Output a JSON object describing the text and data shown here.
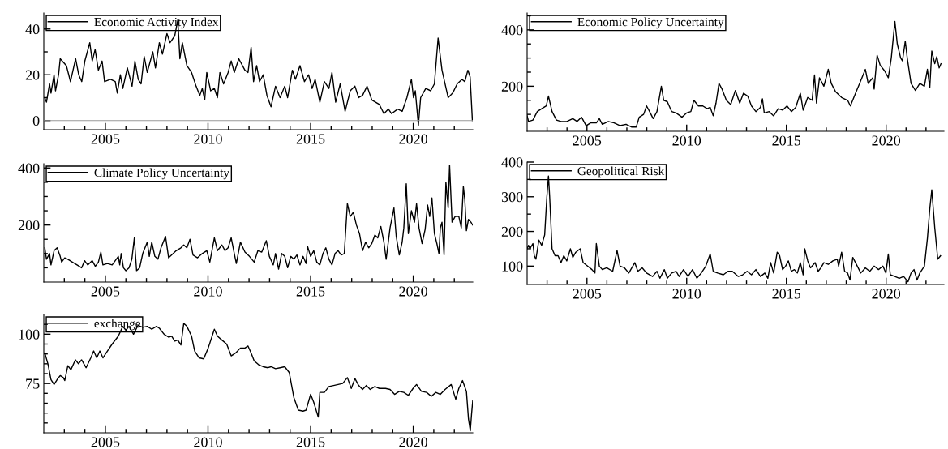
{
  "chart_data": [
    {
      "type": "line",
      "legend": "top left",
      "xlim": [
        2002.0,
        2022.9
      ],
      "ylim": [
        -4,
        47
      ],
      "xticks": [
        {
          "value": 2003,
          "label": null
        },
        {
          "value": 2004,
          "label": null
        },
        2005,
        {
          "value": 2006,
          "label": null
        },
        {
          "value": 2007,
          "label": null
        },
        {
          "value": 2008,
          "label": null
        },
        {
          "value": 2009,
          "label": null
        },
        2010,
        {
          "value": 2011,
          "label": null
        },
        {
          "value": 2012,
          "label": null
        },
        {
          "value": 2013,
          "label": null
        },
        {
          "value": 2014,
          "label": null
        },
        2015,
        {
          "value": 2016,
          "label": null
        },
        {
          "value": 2017,
          "label": null
        },
        {
          "value": 2018,
          "label": null
        },
        {
          "value": 2019,
          "label": null
        },
        2020,
        {
          "value": 2021,
          "label": null
        },
        {
          "value": 2022,
          "label": null
        }
      ],
      "yticks": [
        0,
        {
          "value": 10,
          "label": null
        },
        20,
        {
          "value": 30,
          "label": null
        },
        40
      ],
      "ref_lines": [
        {
          "axis": "y",
          "value": 0,
          "label": null,
          "color": "#999999"
        }
      ],
      "series": [
        {
          "name": "Economic Activity Index",
          "color": "#000000",
          "x": [
            2002.05,
            2002.13,
            2002.28,
            2002.35,
            2002.5,
            2002.57,
            2002.72,
            2002.8,
            2003.1,
            2003.3,
            2003.55,
            2003.7,
            2003.85,
            2004.0,
            2004.24,
            2004.36,
            2004.5,
            2004.66,
            2004.84,
            2004.96,
            2005.25,
            2005.48,
            2005.58,
            2005.73,
            2005.85,
            2006.07,
            2006.3,
            2006.44,
            2006.6,
            2006.74,
            2006.89,
            2007.04,
            2007.31,
            2007.44,
            2007.63,
            2007.78,
            2008.0,
            2008.15,
            2008.38,
            2008.53,
            2008.63,
            2008.75,
            2008.97,
            2009.2,
            2009.42,
            2009.6,
            2009.72,
            2009.84,
            2009.94,
            2010.13,
            2010.31,
            2010.46,
            2010.58,
            2010.76,
            2010.98,
            2011.13,
            2011.28,
            2011.5,
            2011.8,
            2011.95,
            2012.1,
            2012.22,
            2012.37,
            2012.51,
            2012.69,
            2012.87,
            2013.07,
            2013.29,
            2013.51,
            2013.74,
            2013.88,
            2014.11,
            2014.26,
            2014.48,
            2014.7,
            2014.9,
            2015.07,
            2015.22,
            2015.45,
            2015.67,
            2015.89,
            2016.04,
            2016.22,
            2016.44,
            2016.68,
            2016.93,
            2017.16,
            2017.34,
            2017.53,
            2017.75,
            2017.98,
            2018.35,
            2018.57,
            2018.79,
            2018.94,
            2019.24,
            2019.46,
            2019.69,
            2019.91,
            2020.01,
            2020.1,
            2020.25,
            2020.36,
            2020.61,
            2020.85,
            2021.03,
            2021.21,
            2021.4,
            2021.7,
            2021.92,
            2022.14,
            2022.37,
            2022.51,
            2022.66,
            2022.77,
            2022.88
          ],
          "values": [
            10,
            8,
            16,
            12,
            20,
            13,
            20,
            27,
            24,
            17,
            27,
            20,
            17,
            26,
            34,
            26,
            31,
            22,
            26,
            17,
            18,
            17,
            12,
            20,
            14,
            23,
            15,
            26,
            18,
            16,
            28,
            21,
            30,
            23,
            34,
            29,
            38,
            34,
            37,
            44,
            27,
            34,
            24,
            21,
            15,
            11,
            14,
            9,
            21,
            13,
            14,
            10,
            21,
            16,
            21,
            26,
            21,
            27,
            22,
            21,
            32,
            17,
            24,
            17,
            20,
            11,
            6,
            15,
            10,
            15,
            10,
            22,
            18,
            24,
            17,
            20,
            14,
            18,
            8,
            17,
            14,
            21,
            8,
            16,
            4,
            13,
            15,
            10,
            11,
            15,
            9,
            7,
            3,
            5,
            3,
            5,
            4,
            10,
            18,
            10,
            13,
            -2,
            10,
            14,
            13,
            16,
            36,
            22,
            10,
            12,
            16,
            18,
            17,
            22,
            19,
            0
          ]
        }
      ]
    },
    {
      "type": "line",
      "legend": "top left",
      "xlim": [
        2002.0,
        2022.9
      ],
      "ylim": [
        40,
        460
      ],
      "xticks": [
        {
          "value": 2003,
          "label": null
        },
        {
          "value": 2004,
          "label": null
        },
        2005,
        {
          "value": 2006,
          "label": null
        },
        {
          "value": 2007,
          "label": null
        },
        {
          "value": 2008,
          "label": null
        },
        {
          "value": 2009,
          "label": null
        },
        2010,
        {
          "value": 2011,
          "label": null
        },
        {
          "value": 2012,
          "label": null
        },
        {
          "value": 2013,
          "label": null
        },
        {
          "value": 2014,
          "label": null
        },
        2015,
        {
          "value": 2016,
          "label": null
        },
        {
          "value": 2017,
          "label": null
        },
        {
          "value": 2018,
          "label": null
        },
        {
          "value": 2019,
          "label": null
        },
        2020,
        {
          "value": 2021,
          "label": null
        },
        {
          "value": 2022,
          "label": null
        }
      ],
      "yticks": [
        {
          "value": 100,
          "label": null
        },
        {
          "value": 150,
          "label": null
        },
        200,
        {
          "value": 250,
          "label": null
        },
        {
          "value": 300,
          "label": null
        },
        {
          "value": 350,
          "label": null
        },
        400,
        {
          "value": 450,
          "label": null
        }
      ],
      "series": [
        {
          "name": "Economic Policy Uncertainty",
          "color": "#000000",
          "x": [
            2002.0,
            2002.07,
            2002.29,
            2002.51,
            2002.73,
            2002.96,
            2003.07,
            2003.25,
            2003.47,
            2003.7,
            2003.99,
            2004.29,
            2004.51,
            2004.73,
            2004.96,
            2005.18,
            2005.47,
            2005.62,
            2005.77,
            2006.07,
            2006.36,
            2006.66,
            2006.96,
            2007.25,
            2007.47,
            2007.62,
            2007.84,
            2007.99,
            2008.14,
            2008.32,
            2008.51,
            2008.73,
            2008.85,
            2009.03,
            2009.25,
            2009.47,
            2009.77,
            2009.99,
            2010.21,
            2010.36,
            2010.59,
            2010.81,
            2011.03,
            2011.18,
            2011.33,
            2011.47,
            2011.62,
            2011.77,
            2011.99,
            2012.21,
            2012.44,
            2012.66,
            2012.85,
            2013.06,
            2013.25,
            2013.47,
            2013.7,
            2013.8,
            2013.89,
            2014.14,
            2014.36,
            2014.59,
            2014.81,
            2015.03,
            2015.25,
            2015.47,
            2015.7,
            2015.84,
            2016.07,
            2016.29,
            2016.41,
            2016.51,
            2016.66,
            2016.88,
            2017.1,
            2017.25,
            2017.47,
            2017.77,
            2018.07,
            2018.21,
            2018.44,
            2018.73,
            2018.96,
            2019.1,
            2019.33,
            2019.4,
            2019.55,
            2019.7,
            2019.92,
            2020.11,
            2020.26,
            2020.44,
            2020.56,
            2020.73,
            2020.82,
            2020.96,
            2021.06,
            2021.25,
            2021.47,
            2021.69,
            2021.92,
            2022.07,
            2022.19,
            2022.29,
            2022.44,
            2022.54,
            2022.66,
            2022.75
          ],
          "values": [
            95,
            75,
            80,
            110,
            120,
            130,
            165,
            110,
            80,
            75,
            75,
            85,
            75,
            90,
            60,
            70,
            70,
            85,
            65,
            75,
            70,
            60,
            65,
            55,
            55,
            90,
            100,
            130,
            110,
            85,
            110,
            200,
            150,
            145,
            110,
            105,
            90,
            105,
            110,
            150,
            130,
            130,
            120,
            125,
            95,
            140,
            210,
            190,
            150,
            135,
            185,
            140,
            175,
            165,
            130,
            110,
            125,
            155,
            105,
            110,
            95,
            120,
            115,
            130,
            110,
            125,
            175,
            115,
            160,
            150,
            240,
            140,
            230,
            200,
            260,
            210,
            180,
            160,
            150,
            130,
            170,
            220,
            260,
            210,
            230,
            190,
            310,
            275,
            255,
            230,
            300,
            430,
            350,
            300,
            290,
            360,
            300,
            210,
            185,
            210,
            200,
            260,
            195,
            325,
            280,
            305,
            265,
            280
          ]
        }
      ]
    },
    {
      "type": "line",
      "legend": "top left",
      "xlim": [
        2002.0,
        2022.9
      ],
      "ylim": [
        0,
        415
      ],
      "xticks": [
        {
          "value": 2003,
          "label": null
        },
        {
          "value": 2004,
          "label": null
        },
        2005,
        {
          "value": 2006,
          "label": null
        },
        {
          "value": 2007,
          "label": null
        },
        {
          "value": 2008,
          "label": null
        },
        {
          "value": 2009,
          "label": null
        },
        2010,
        {
          "value": 2011,
          "label": null
        },
        {
          "value": 2012,
          "label": null
        },
        {
          "value": 2013,
          "label": null
        },
        {
          "value": 2014,
          "label": null
        },
        2015,
        {
          "value": 2016,
          "label": null
        },
        {
          "value": 2017,
          "label": null
        },
        {
          "value": 2018,
          "label": null
        },
        {
          "value": 2019,
          "label": null
        },
        2020,
        {
          "value": 2021,
          "label": null
        },
        {
          "value": 2022,
          "label": null
        }
      ],
      "yticks": [
        {
          "value": 50,
          "label": null
        },
        {
          "value": 100,
          "label": null
        },
        {
          "value": 150,
          "label": null
        },
        200,
        {
          "value": 250,
          "label": null
        },
        {
          "value": 300,
          "label": null
        },
        {
          "value": 350,
          "label": null
        },
        400
      ],
      "series": [
        {
          "name": "Climate Policy Uncertainty",
          "color": "#000000",
          "x": [
            2002.05,
            2002.13,
            2002.28,
            2002.35,
            2002.5,
            2002.65,
            2002.8,
            2002.87,
            2003.02,
            2003.17,
            2003.39,
            2003.62,
            2003.84,
            2003.99,
            2004.14,
            2004.36,
            2004.51,
            2004.66,
            2004.78,
            2004.88,
            2005.1,
            2005.33,
            2005.48,
            2005.63,
            2005.7,
            2005.77,
            2005.88,
            2006.0,
            2006.15,
            2006.29,
            2006.41,
            2006.52,
            2006.67,
            2006.82,
            2007.04,
            2007.14,
            2007.26,
            2007.41,
            2007.56,
            2007.71,
            2007.93,
            2008.08,
            2008.23,
            2008.45,
            2008.68,
            2008.82,
            2008.97,
            2009.12,
            2009.27,
            2009.49,
            2009.72,
            2009.94,
            2010.09,
            2010.31,
            2010.46,
            2010.68,
            2010.83,
            2010.98,
            2011.13,
            2011.28,
            2011.38,
            2011.58,
            2011.8,
            2012.02,
            2012.25,
            2012.43,
            2012.62,
            2012.84,
            2012.99,
            2013.18,
            2013.29,
            2013.44,
            2013.59,
            2013.74,
            2013.88,
            2014.03,
            2014.18,
            2014.33,
            2014.48,
            2014.63,
            2014.78,
            2014.85,
            2015.0,
            2015.15,
            2015.3,
            2015.45,
            2015.6,
            2015.74,
            2015.89,
            2016.04,
            2016.19,
            2016.34,
            2016.49,
            2016.64,
            2016.79,
            2016.93,
            2017.08,
            2017.23,
            2017.38,
            2017.53,
            2017.68,
            2017.83,
            2017.98,
            2018.13,
            2018.27,
            2018.42,
            2018.57,
            2018.68,
            2018.87,
            2019.06,
            2019.17,
            2019.32,
            2019.46,
            2019.54,
            2019.66,
            2019.76,
            2019.91,
            2020.06,
            2020.16,
            2020.28,
            2020.43,
            2020.58,
            2020.7,
            2020.8,
            2020.91,
            2021.03,
            2021.15,
            2021.25,
            2021.32,
            2021.4,
            2021.5,
            2021.59,
            2021.7,
            2021.77,
            2021.89,
            2022.04,
            2022.22,
            2022.34,
            2022.44,
            2022.51,
            2022.59,
            2022.69,
            2022.81,
            2022.89
          ],
          "values": [
            120,
            80,
            100,
            60,
            110,
            120,
            90,
            70,
            85,
            80,
            70,
            60,
            50,
            75,
            60,
            75,
            55,
            70,
            105,
            60,
            65,
            60,
            75,
            90,
            60,
            100,
            50,
            40,
            50,
            80,
            155,
            40,
            50,
            100,
            140,
            90,
            140,
            90,
            80,
            120,
            160,
            85,
            95,
            110,
            120,
            130,
            120,
            150,
            95,
            85,
            100,
            110,
            70,
            155,
            110,
            130,
            110,
            120,
            155,
            100,
            65,
            140,
            105,
            90,
            70,
            110,
            105,
            145,
            90,
            60,
            100,
            45,
            100,
            90,
            50,
            90,
            80,
            95,
            60,
            90,
            65,
            125,
            90,
            110,
            70,
            60,
            100,
            120,
            80,
            60,
            100,
            110,
            95,
            100,
            275,
            230,
            245,
            200,
            170,
            110,
            140,
            120,
            135,
            165,
            155,
            195,
            140,
            80,
            190,
            260,
            160,
            95,
            140,
            190,
            345,
            170,
            250,
            210,
            275,
            190,
            135,
            185,
            270,
            230,
            295,
            170,
            135,
            100,
            190,
            210,
            95,
            350,
            260,
            410,
            210,
            230,
            230,
            190,
            335,
            290,
            180,
            220,
            210,
            200
          ]
        }
      ]
    },
    {
      "type": "line",
      "legend": "top left",
      "xlim": [
        2002.0,
        2022.9
      ],
      "ylim": [
        47,
        400
      ],
      "xticks": [
        {
          "value": 2003,
          "label": null
        },
        {
          "value": 2004,
          "label": null
        },
        2005,
        {
          "value": 2006,
          "label": null
        },
        {
          "value": 2007,
          "label": null
        },
        {
          "value": 2008,
          "label": null
        },
        {
          "value": 2009,
          "label": null
        },
        2010,
        {
          "value": 2011,
          "label": null
        },
        {
          "value": 2012,
          "label": null
        },
        {
          "value": 2013,
          "label": null
        },
        {
          "value": 2014,
          "label": null
        },
        2015,
        {
          "value": 2016,
          "label": null
        },
        {
          "value": 2017,
          "label": null
        },
        {
          "value": 2018,
          "label": null
        },
        {
          "value": 2019,
          "label": null
        },
        2020,
        {
          "value": 2021,
          "label": null
        },
        {
          "value": 2022,
          "label": null
        }
      ],
      "yticks": [
        100,
        {
          "value": 150,
          "label": null
        },
        200,
        {
          "value": 250,
          "label": null
        },
        300,
        {
          "value": 350,
          "label": null
        },
        400
      ],
      "series": [
        {
          "name": "Geopolitical Risk",
          "color": "#000000",
          "x": [
            2002.0,
            2002.07,
            2002.14,
            2002.29,
            2002.36,
            2002.44,
            2002.59,
            2002.73,
            2002.88,
            2002.99,
            2003.07,
            2003.13,
            2003.25,
            2003.4,
            2003.55,
            2003.7,
            2003.84,
            2003.99,
            2004.17,
            2004.29,
            2004.44,
            2004.66,
            2004.81,
            2005.03,
            2005.25,
            2005.4,
            2005.47,
            2005.62,
            2005.77,
            2005.99,
            2006.29,
            2006.51,
            2006.66,
            2006.88,
            2007.1,
            2007.25,
            2007.4,
            2007.55,
            2007.77,
            2007.99,
            2008.29,
            2008.51,
            2008.66,
            2008.88,
            2009.03,
            2009.25,
            2009.47,
            2009.62,
            2009.84,
            2010.07,
            2010.29,
            2010.51,
            2010.73,
            2010.96,
            2011.18,
            2011.33,
            2011.55,
            2011.84,
            2012.07,
            2012.29,
            2012.59,
            2012.81,
            2013.03,
            2013.25,
            2013.47,
            2013.7,
            2013.92,
            2014.07,
            2014.21,
            2014.36,
            2014.54,
            2014.66,
            2014.81,
            2014.96,
            2015.1,
            2015.25,
            2015.4,
            2015.55,
            2015.7,
            2015.84,
            2015.92,
            2016.07,
            2016.21,
            2016.44,
            2016.59,
            2016.73,
            2016.88,
            2017.1,
            2017.33,
            2017.55,
            2017.62,
            2017.77,
            2017.92,
            2018.07,
            2018.19,
            2018.33,
            2018.51,
            2018.73,
            2018.96,
            2019.18,
            2019.4,
            2019.62,
            2019.84,
            2019.99,
            2020.11,
            2020.21,
            2020.44,
            2020.66,
            2020.88,
            2021.1,
            2021.25,
            2021.4,
            2021.55,
            2021.69,
            2021.92,
            2022.07,
            2022.19,
            2022.29,
            2022.44,
            2022.59,
            2022.73
          ],
          "values": [
            150,
            160,
            150,
            165,
            130,
            120,
            175,
            160,
            190,
            300,
            360,
            300,
            150,
            130,
            130,
            110,
            130,
            115,
            150,
            125,
            140,
            150,
            110,
            100,
            90,
            80,
            165,
            100,
            90,
            95,
            85,
            145,
            100,
            95,
            80,
            95,
            110,
            85,
            95,
            80,
            70,
            85,
            65,
            90,
            65,
            80,
            85,
            70,
            90,
            70,
            90,
            65,
            80,
            100,
            135,
            85,
            80,
            75,
            85,
            85,
            70,
            75,
            85,
            75,
            90,
            70,
            80,
            65,
            110,
            80,
            140,
            130,
            90,
            100,
            115,
            85,
            90,
            80,
            110,
            75,
            150,
            115,
            95,
            110,
            85,
            95,
            110,
            105,
            115,
            120,
            100,
            140,
            85,
            80,
            60,
            125,
            105,
            80,
            95,
            85,
            100,
            90,
            100,
            80,
            135,
            75,
            70,
            65,
            70,
            55,
            80,
            90,
            60,
            80,
            100,
            180,
            265,
            320,
            210,
            120,
            130
          ]
        }
      ]
    },
    {
      "type": "line",
      "legend": "top left",
      "xlim": [
        2002.0,
        2022.9
      ],
      "ylim": [
        50,
        110
      ],
      "xticks": [
        {
          "value": 2003,
          "label": null
        },
        {
          "value": 2004,
          "label": null
        },
        2005,
        {
          "value": 2006,
          "label": null
        },
        {
          "value": 2007,
          "label": null
        },
        {
          "value": 2008,
          "label": null
        },
        {
          "value": 2009,
          "label": null
        },
        2010,
        {
          "value": 2011,
          "label": null
        },
        {
          "value": 2012,
          "label": null
        },
        {
          "value": 2013,
          "label": null
        },
        {
          "value": 2014,
          "label": null
        },
        2015,
        {
          "value": 2016,
          "label": null
        },
        {
          "value": 2017,
          "label": null
        },
        {
          "value": 2018,
          "label": null
        },
        {
          "value": 2019,
          "label": null
        },
        2020,
        {
          "value": 2021,
          "label": null
        },
        {
          "value": 2022,
          "label": null
        }
      ],
      "yticks": [
        {
          "value": 55,
          "label": null
        },
        {
          "value": 60,
          "label": null
        },
        {
          "value": 65,
          "label": null
        },
        {
          "value": 70,
          "label": null
        },
        75,
        {
          "value": 80,
          "label": null
        },
        {
          "value": 85,
          "label": null
        },
        {
          "value": 90,
          "label": null
        },
        {
          "value": 95,
          "label": null
        },
        100,
        {
          "value": 105,
          "label": null
        }
      ],
      "series": [
        {
          "name": "exchange",
          "color": "#000000",
          "x": [
            2002.05,
            2002.2,
            2002.35,
            2002.5,
            2002.65,
            2002.8,
            2002.95,
            2003.02,
            2003.17,
            2003.32,
            2003.54,
            2003.69,
            2003.84,
            2004.06,
            2004.29,
            2004.43,
            2004.58,
            2004.73,
            2004.88,
            2005.1,
            2005.33,
            2005.63,
            2005.85,
            2006.0,
            2006.15,
            2006.37,
            2006.59,
            2006.82,
            2007.04,
            2007.26,
            2007.49,
            2007.63,
            2007.86,
            2008.08,
            2008.23,
            2008.38,
            2008.53,
            2008.68,
            2008.82,
            2008.97,
            2009.2,
            2009.35,
            2009.57,
            2009.79,
            2010.01,
            2010.31,
            2010.46,
            2010.68,
            2010.91,
            2011.13,
            2011.35,
            2011.58,
            2011.8,
            2011.95,
            2012.1,
            2012.25,
            2012.47,
            2012.69,
            2012.92,
            2013.07,
            2013.29,
            2013.51,
            2013.74,
            2013.96,
            2014.18,
            2014.4,
            2014.63,
            2014.78,
            2015.0,
            2015.15,
            2015.37,
            2015.45,
            2015.67,
            2015.89,
            2016.12,
            2016.34,
            2016.56,
            2016.79,
            2016.98,
            2017.16,
            2017.34,
            2017.53,
            2017.72,
            2017.9,
            2018.13,
            2018.35,
            2018.65,
            2018.87,
            2019.09,
            2019.32,
            2019.54,
            2019.76,
            2019.99,
            2020.16,
            2020.4,
            2020.65,
            2020.88,
            2021.1,
            2021.32,
            2021.55,
            2021.85,
            2022.07,
            2022.22,
            2022.4,
            2022.59,
            2022.69,
            2022.78,
            2022.84,
            2022.9
          ],
          "values": [
            90.5,
            85,
            77,
            74.5,
            77,
            79,
            78,
            76.5,
            84,
            82,
            87,
            85,
            87,
            83,
            88,
            91.5,
            88,
            91.5,
            88,
            91.5,
            95,
            99,
            104,
            102,
            104,
            100,
            104.5,
            103.5,
            104,
            102.5,
            104,
            103,
            100,
            98.5,
            99,
            96.5,
            97,
            94.5,
            105.5,
            104,
            99,
            91.5,
            88,
            87.5,
            93,
            102.5,
            99,
            97,
            95,
            89,
            90.5,
            93,
            93,
            94,
            90.5,
            86.5,
            84.5,
            83.5,
            83,
            83.5,
            82.5,
            83,
            83.5,
            80.5,
            68,
            61.5,
            61,
            61.5,
            69.5,
            65.5,
            58,
            70.5,
            70.5,
            73.5,
            74,
            74.5,
            75,
            78,
            72.5,
            77.5,
            74,
            72,
            74,
            72,
            73.5,
            72.5,
            72.5,
            72,
            69.5,
            71,
            70.5,
            69,
            72.5,
            74.5,
            71,
            70.5,
            68.5,
            70.5,
            69.5,
            72,
            74.5,
            67,
            72.5,
            76.5,
            71,
            57,
            51,
            59.5,
            66.5
          ]
        }
      ]
    }
  ]
}
